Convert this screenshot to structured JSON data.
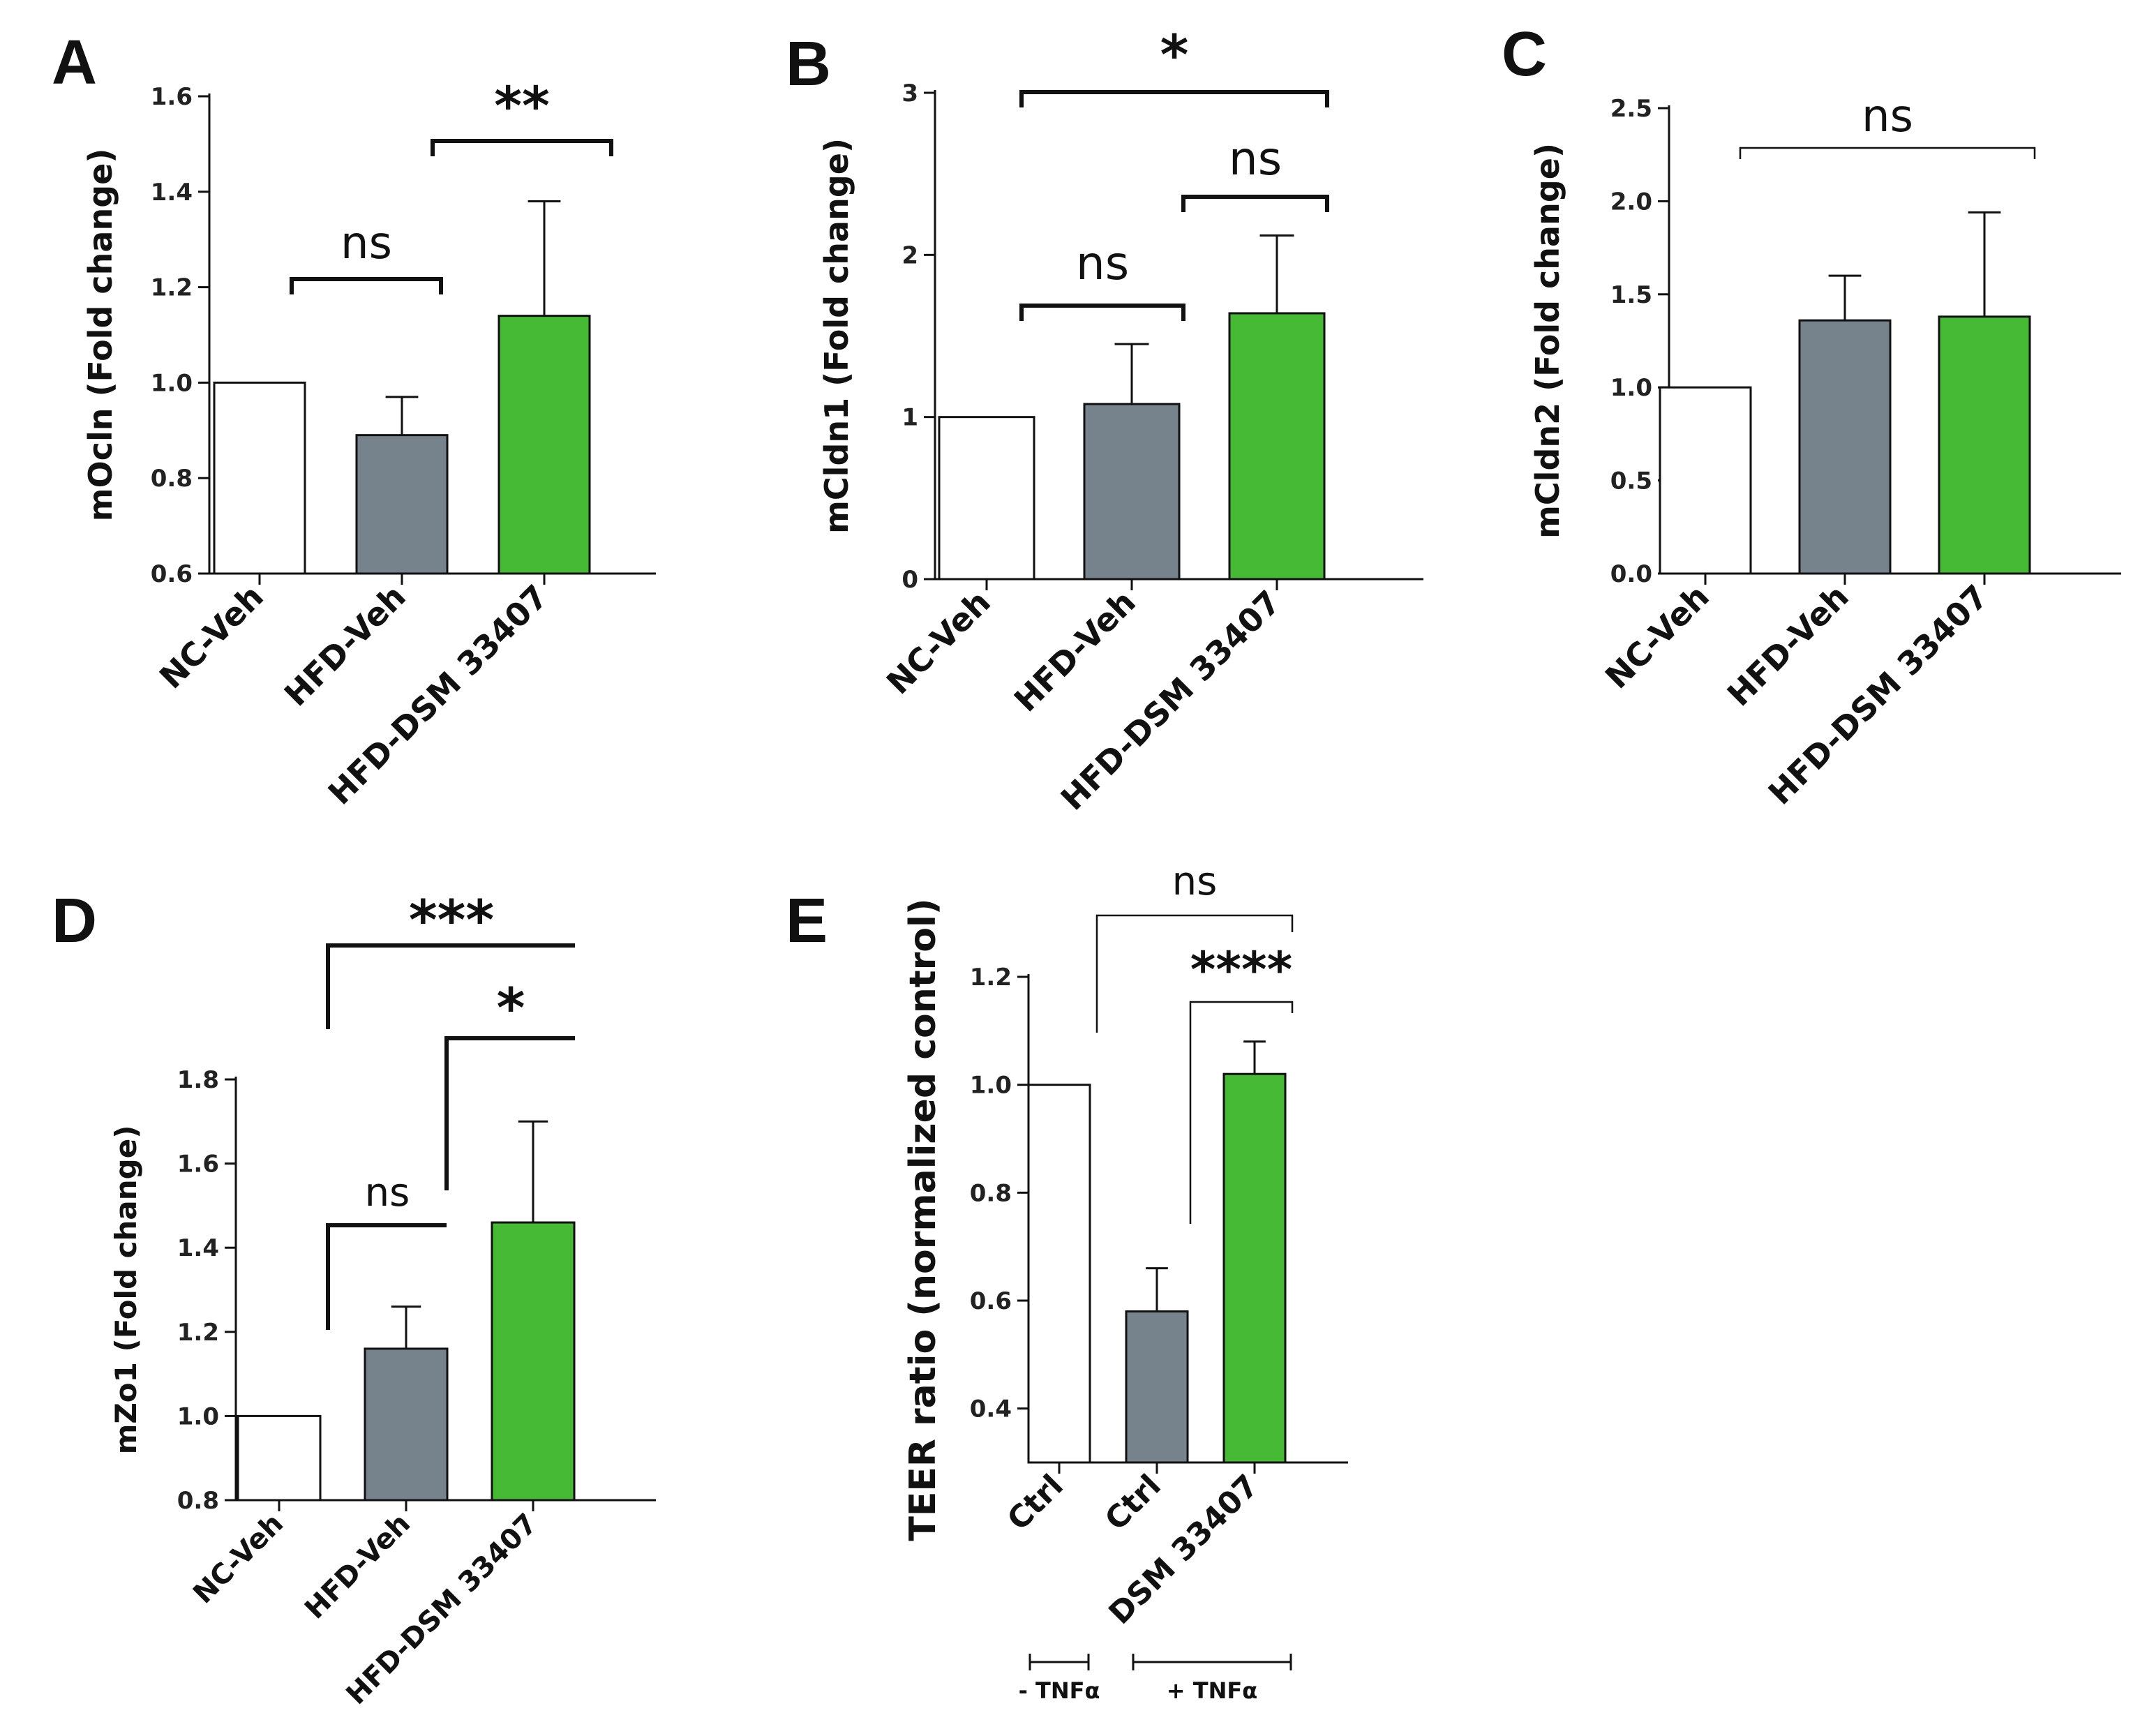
{
  "colors": {
    "nc": "#ffffff",
    "hfd": "#77838c",
    "dsm": "#46b935",
    "ink": "#111111"
  },
  "chart_data": [
    {
      "panel": "A",
      "type": "bar",
      "ylabel": "mOcln (Fold change)",
      "categories": [
        "NC-Veh",
        "HFD-Veh",
        "HFD-DSM 33407"
      ],
      "values": [
        1.0,
        0.89,
        1.14
      ],
      "errors": [
        0,
        0.08,
        0.24
      ],
      "ylim": [
        0.6,
        1.6
      ],
      "yticks": [
        "0.6",
        "0.8",
        "1.0",
        "1.2",
        "1.4",
        "1.6"
      ],
      "significance": [
        {
          "label": "ns",
          "from": 0,
          "to": 1
        },
        {
          "label": "**",
          "from": 1,
          "to": 2
        }
      ]
    },
    {
      "panel": "B",
      "type": "bar",
      "ylabel": "mCldn1 (Fold change)",
      "categories": [
        "NC-Veh",
        "HFD-Veh",
        "HFD-DSM 33407"
      ],
      "values": [
        1.0,
        1.08,
        1.64
      ],
      "errors": [
        0,
        0.37,
        0.48
      ],
      "ylim": [
        0,
        3
      ],
      "yticks": [
        "0",
        "1",
        "2",
        "3"
      ],
      "significance": [
        {
          "label": "ns",
          "from": 0,
          "to": 1
        },
        {
          "label": "ns",
          "from": 1,
          "to": 2
        },
        {
          "label": "*",
          "from": 0,
          "to": 2
        }
      ]
    },
    {
      "panel": "C",
      "type": "bar",
      "ylabel": "mCldn2 (Fold change)",
      "categories": [
        "NC-Veh",
        "HFD-Veh",
        "HFD-DSM 33407"
      ],
      "values": [
        1.0,
        1.36,
        1.38
      ],
      "errors": [
        0,
        0.24,
        0.56
      ],
      "ylim": [
        0,
        2.5
      ],
      "yticks": [
        "0.0",
        "0.5",
        "1.0",
        "1.5",
        "2.0",
        "2.5"
      ],
      "significance": [
        {
          "label": "ns",
          "from": 0,
          "to": 2
        }
      ]
    },
    {
      "panel": "D",
      "type": "bar",
      "ylabel": "mZo1 (Fold change)",
      "categories": [
        "NC-Veh",
        "HFD-Veh",
        "HFD-DSM 33407"
      ],
      "values": [
        1.0,
        1.16,
        1.46
      ],
      "errors": [
        0,
        0.1,
        0.24
      ],
      "ylim": [
        0.8,
        1.8
      ],
      "yticks": [
        "0.8",
        "1.0",
        "1.2",
        "1.4",
        "1.6",
        "1.8"
      ],
      "significance": [
        {
          "label": "ns",
          "from": 0,
          "to": 1
        },
        {
          "label": "*",
          "from": 1,
          "to": 2
        },
        {
          "label": "***",
          "from": 0,
          "to": 2
        }
      ]
    },
    {
      "panel": "E",
      "type": "bar",
      "ylabel": "TEER ratio (normalized control)",
      "categories": [
        "Ctrl",
        "Ctrl",
        "DSM 33407"
      ],
      "values": [
        1.0,
        0.58,
        1.02
      ],
      "errors": [
        0,
        0.08,
        0.06
      ],
      "ylim": [
        0.3,
        1.2
      ],
      "yticks": [
        "0.4",
        "0.6",
        "0.8",
        "1.0",
        "1.2"
      ],
      "groups": [
        {
          "label": "- TNFα",
          "from": 0,
          "to": 0
        },
        {
          "label": "+ TNFα",
          "from": 1,
          "to": 2
        }
      ],
      "significance": [
        {
          "label": "ns",
          "from": 0,
          "to": 2
        },
        {
          "label": "****",
          "from": 1,
          "to": 2
        }
      ]
    }
  ]
}
